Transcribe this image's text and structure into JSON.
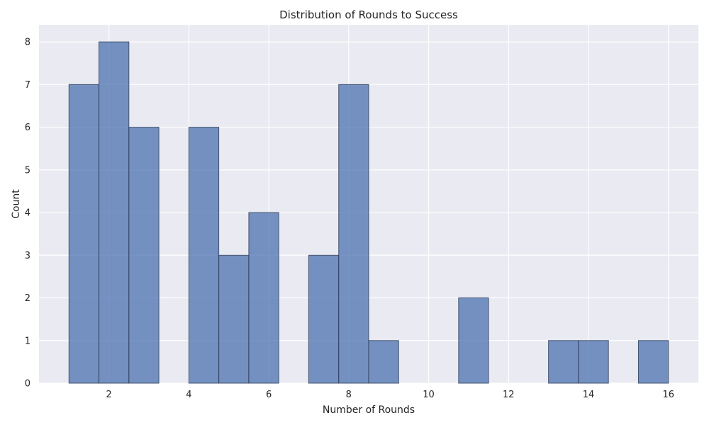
{
  "chart_data": {
    "type": "bar",
    "subtype": "histogram",
    "title": "Distribution of Rounds to Success",
    "xlabel": "Number of Rounds",
    "ylabel": "Count",
    "xlim": [
      0.25,
      16.75
    ],
    "ylim": [
      0,
      8.4
    ],
    "grid": true,
    "bin_edges": [
      1,
      1.75,
      2.5,
      3.25,
      4,
      4.75,
      5.5,
      6.25,
      7,
      7.75,
      8.5,
      9.25,
      10,
      10.75,
      11.5,
      12.25,
      13,
      13.75,
      14.5,
      15.25,
      16
    ],
    "counts": [
      7,
      8,
      6,
      0,
      6,
      3,
      4,
      0,
      3,
      7,
      1,
      0,
      0,
      2,
      0,
      0,
      1,
      1,
      0,
      1
    ],
    "x_ticks": [
      2,
      4,
      6,
      8,
      10,
      12,
      14,
      16
    ],
    "y_ticks": [
      0,
      1,
      2,
      3,
      4,
      5,
      6,
      7,
      8
    ],
    "bar_color": "#4c72b0",
    "bar_edge_color": "#2b3a55",
    "background_color": "#eaeaf2",
    "grid_color": "#ffffff"
  }
}
